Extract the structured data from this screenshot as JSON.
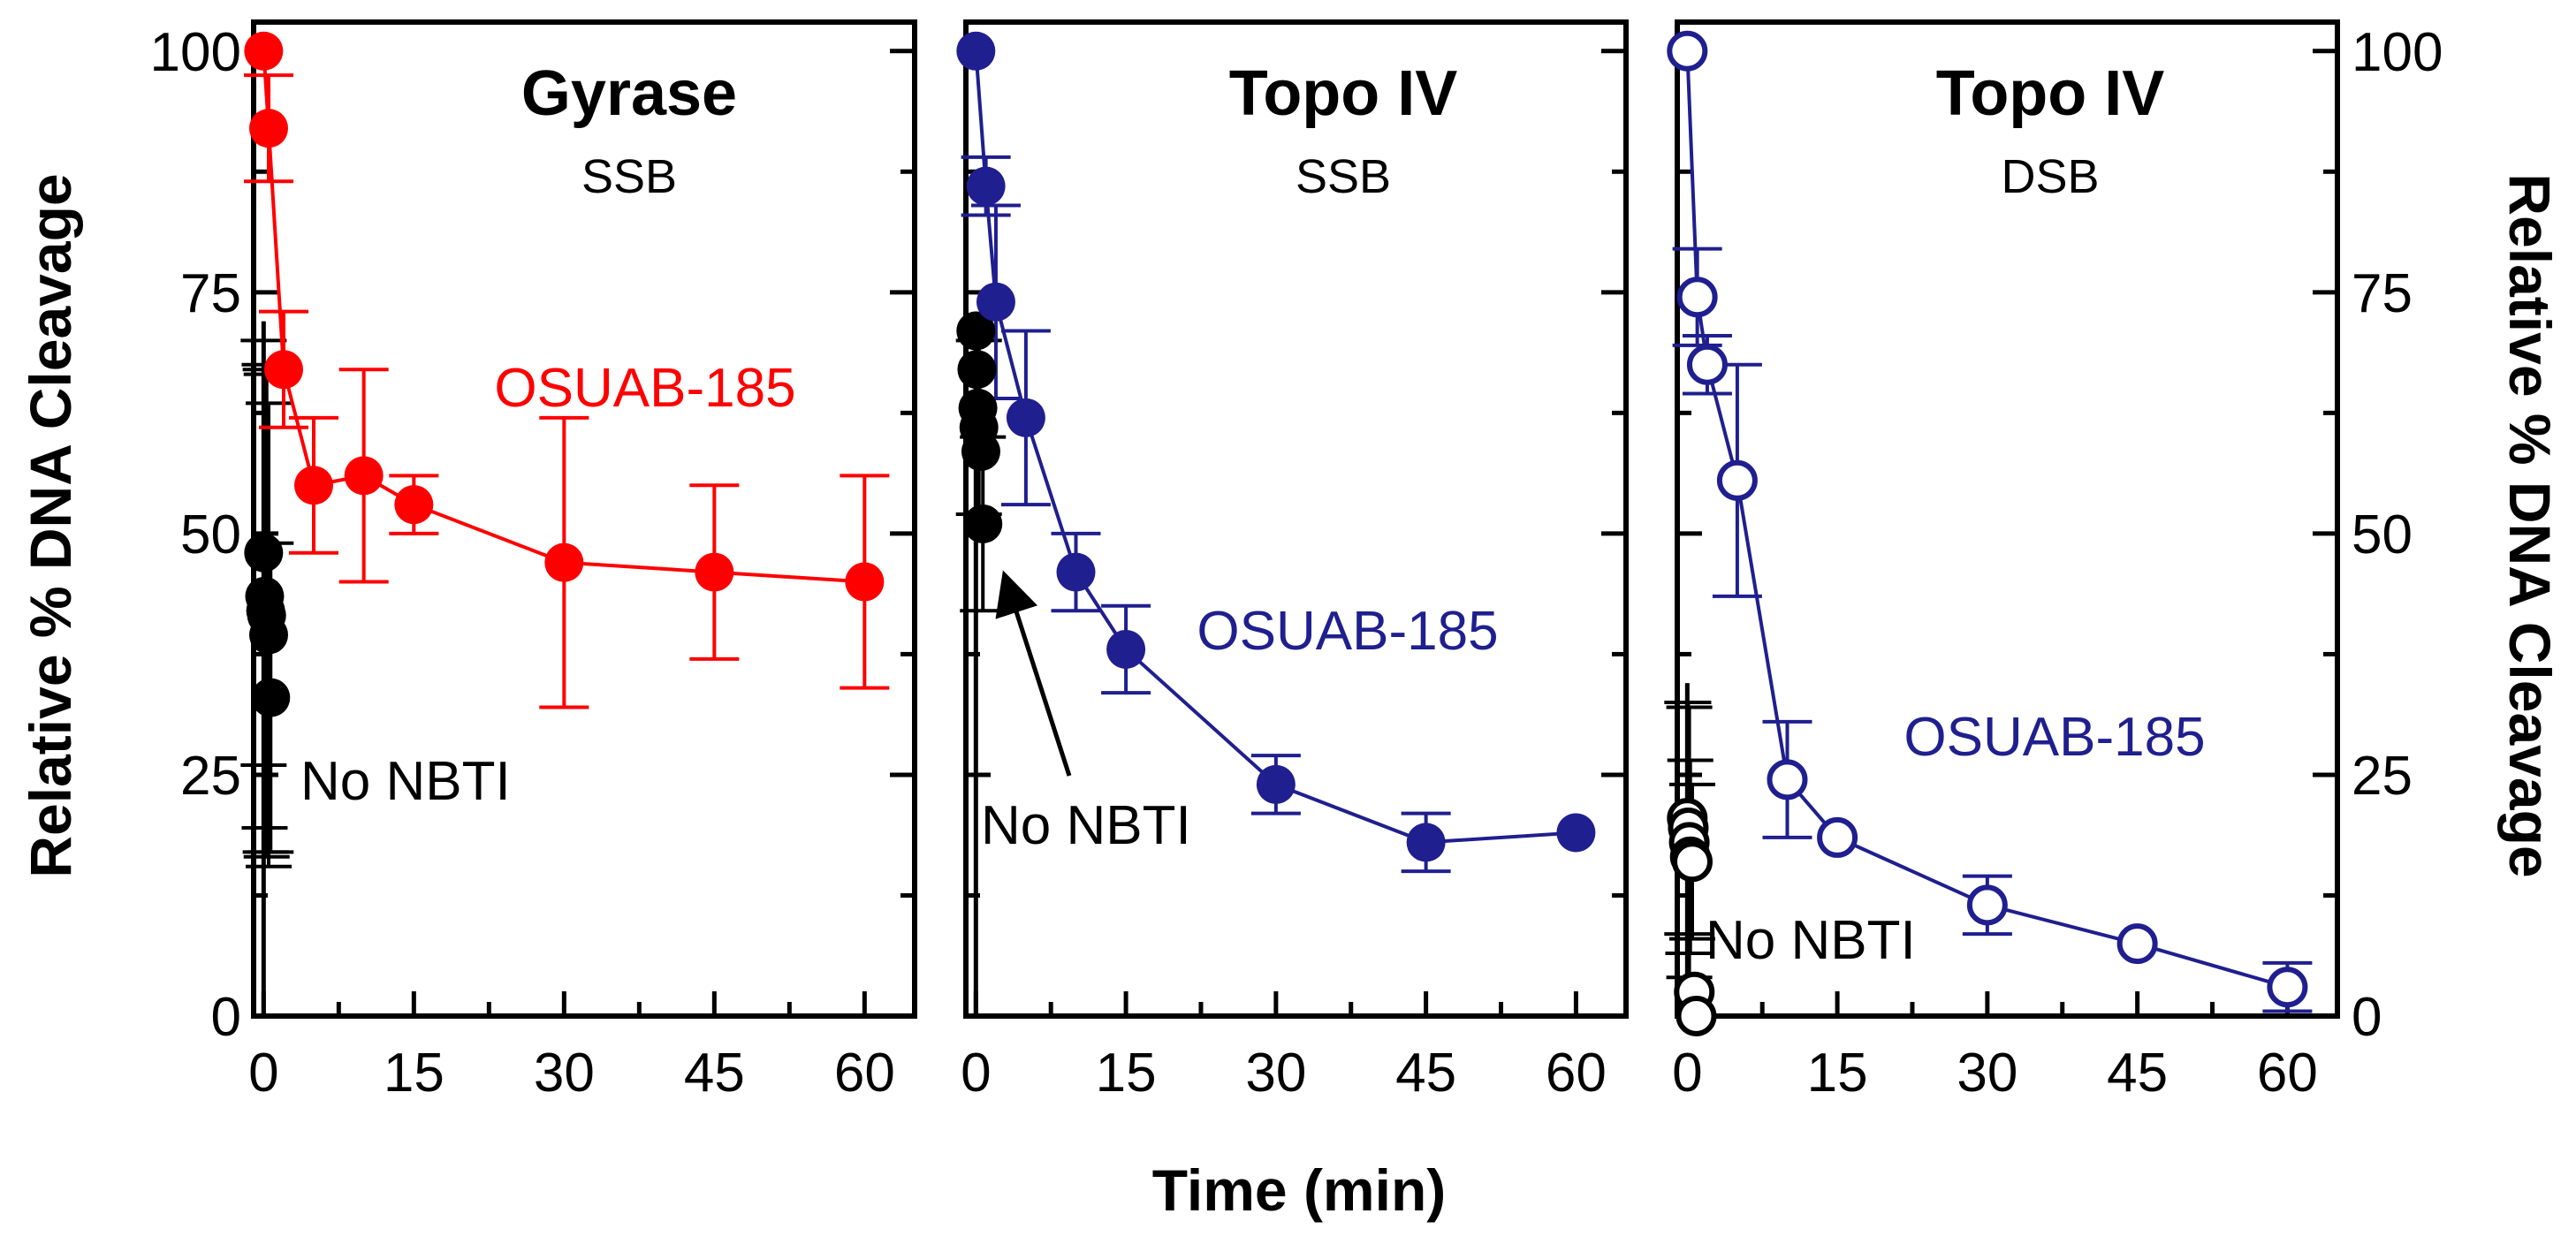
{
  "chart_data": {
    "type": "line",
    "shared": {
      "xlabel": "Time (min)",
      "ylabel": "Relative % DNA Cleavage",
      "xlim": [
        -1,
        65
      ],
      "ylim": [
        0,
        103
      ],
      "xticks": [
        0,
        15,
        30,
        45,
        60
      ],
      "yticks": [
        0,
        25,
        50,
        75,
        100
      ],
      "ytick_labels": [
        "0",
        "25",
        "50",
        "75",
        "100"
      ]
    },
    "panels": [
      {
        "title": "Gyrase",
        "subtitle": "SSB",
        "color": "#ff0000",
        "marker": "filled",
        "series_label": "OSUAB-185",
        "control_label": "No NBTI",
        "x": [
          0,
          0.5,
          2,
          5,
          10,
          15,
          30,
          45,
          60
        ],
        "y": [
          100,
          92,
          67,
          55,
          56,
          53,
          47,
          46,
          45
        ],
        "err": [
          0,
          5.5,
          6,
          7,
          11,
          3,
          15,
          9,
          11
        ],
        "control_x": [
          0,
          0.1,
          0.2,
          0.3,
          0.5,
          0.7
        ],
        "control_y": [
          48,
          43.5,
          42,
          41.5,
          39.5,
          33
        ],
        "control_err": [
          22,
          24,
          25,
          25,
          24,
          16
        ]
      },
      {
        "title": "Topo IV",
        "subtitle": "SSB",
        "color": "#1f1f8f",
        "marker": "filled",
        "series_label": "OSUAB-185",
        "control_label": "No NBTI",
        "x": [
          0,
          1,
          2,
          5,
          10,
          15,
          30,
          45,
          60
        ],
        "y": [
          100,
          86,
          74,
          62,
          46,
          38,
          24,
          18,
          19
        ],
        "err": [
          0,
          3,
          10,
          9,
          4,
          4.5,
          3,
          3,
          0
        ],
        "control_x": [
          0,
          0.1,
          0.2,
          0.3,
          0.5,
          0.7
        ],
        "control_y": [
          71,
          67,
          63,
          61,
          58.5,
          51
        ],
        "control_err": [
          0,
          0,
          0,
          9,
          0,
          9
        ]
      },
      {
        "title": "Topo IV",
        "subtitle": "DSB",
        "color": "#1f1f8f",
        "marker": "open",
        "series_label": "OSUAB-185",
        "control_label": "No NBTI",
        "x": [
          0,
          1,
          2,
          5,
          10,
          15,
          30,
          45,
          60
        ],
        "y": [
          100,
          74.5,
          67.5,
          55.5,
          24.5,
          18.5,
          11.5,
          7.5,
          3
        ],
        "err": [
          0,
          5,
          3,
          12,
          6,
          0,
          3,
          0,
          2.5
        ],
        "control_x": [
          0,
          0.1,
          0.2,
          0.3,
          0.5,
          0.7,
          0.9
        ],
        "control_y": [
          20.5,
          19.5,
          18,
          16.5,
          16,
          2.5,
          0
        ],
        "control_err": [
          12,
          13,
          14,
          10,
          8,
          0,
          0
        ]
      }
    ]
  }
}
